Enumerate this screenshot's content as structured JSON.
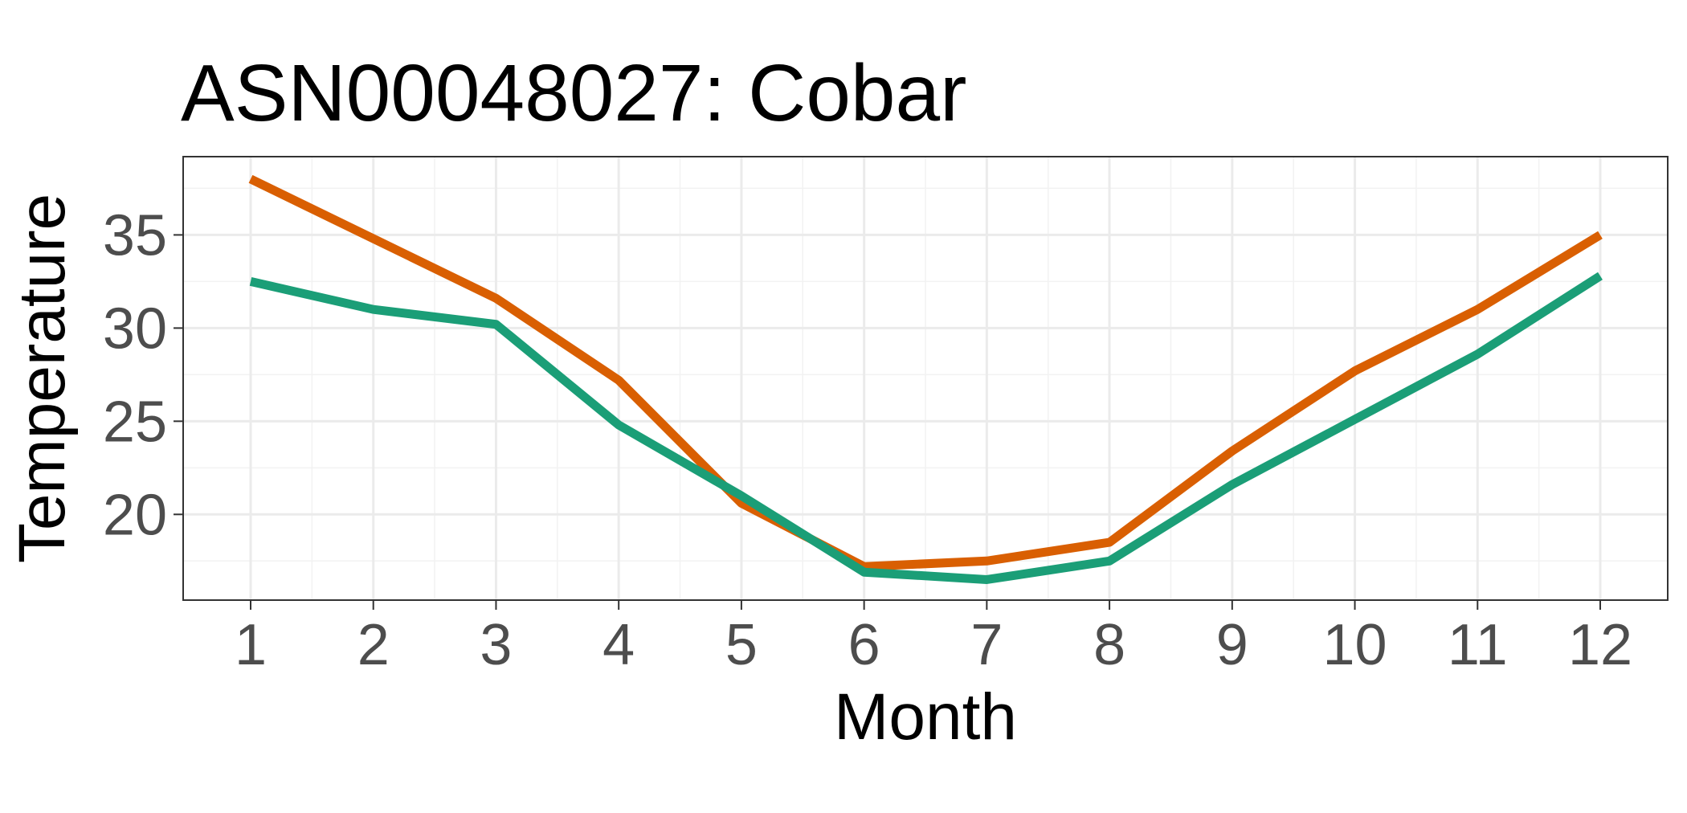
{
  "chart_data": {
    "type": "line",
    "title": "ASN00048027: Cobar",
    "xlabel": "Month",
    "ylabel": "Temperature",
    "x": [
      1,
      2,
      3,
      4,
      5,
      6,
      7,
      8,
      9,
      10,
      11,
      12
    ],
    "xticks": [
      "1",
      "2",
      "3",
      "4",
      "5",
      "6",
      "7",
      "8",
      "9",
      "10",
      "11",
      "12"
    ],
    "yticks": [
      20,
      25,
      30,
      35
    ],
    "xlim": [
      0.45,
      12.55
    ],
    "ylim": [
      15.4,
      39.2
    ],
    "grid": true,
    "legend": "none",
    "series": [
      {
        "color": "#D95F02",
        "values": [
          38.0,
          34.8,
          31.6,
          27.2,
          20.6,
          17.2,
          17.5,
          18.5,
          23.4,
          27.7,
          31.0,
          35.0
        ]
      },
      {
        "color": "#1B9E77",
        "values": [
          32.5,
          31.0,
          30.2,
          24.8,
          21.0,
          16.9,
          16.5,
          17.5,
          21.6,
          25.1,
          28.6,
          32.8
        ]
      }
    ]
  }
}
